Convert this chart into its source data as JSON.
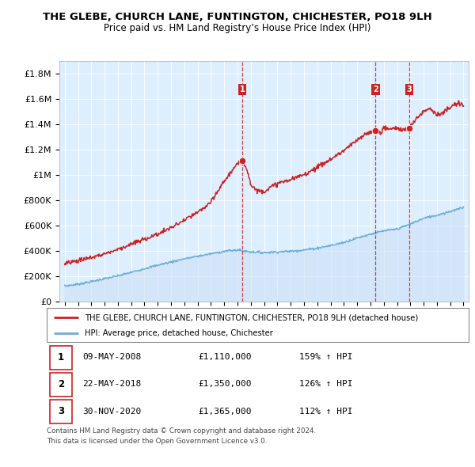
{
  "title": "THE GLEBE, CHURCH LANE, FUNTINGTON, CHICHESTER, PO18 9LH",
  "subtitle": "Price paid vs. HM Land Registry’s House Price Index (HPI)",
  "ylim": [
    0,
    1900000
  ],
  "yticks": [
    0,
    200000,
    400000,
    600000,
    800000,
    1000000,
    1200000,
    1400000,
    1600000,
    1800000
  ],
  "ytick_labels": [
    "£0",
    "£200K",
    "£400K",
    "£600K",
    "£800K",
    "£1M",
    "£1.2M",
    "£1.4M",
    "£1.6M",
    "£1.8M"
  ],
  "legend_line1": "THE GLEBE, CHURCH LANE, FUNTINGTON, CHICHESTER, PO18 9LH (detached house)",
  "legend_line2": "HPI: Average price, detached house, Chichester",
  "sale1_label": "1",
  "sale1_date": "09-MAY-2008",
  "sale1_price": "£1,110,000",
  "sale1_hpi": "159% ↑ HPI",
  "sale1_x": 2008.36,
  "sale1_y": 1110000,
  "sale2_label": "2",
  "sale2_date": "22-MAY-2018",
  "sale2_price": "£1,350,000",
  "sale2_hpi": "126% ↑ HPI",
  "sale2_x": 2018.39,
  "sale2_y": 1350000,
  "sale3_label": "3",
  "sale3_date": "30-NOV-2020",
  "sale3_price": "£1,365,000",
  "sale3_hpi": "112% ↑ HPI",
  "sale3_x": 2020.92,
  "sale3_y": 1365000,
  "hpi_color": "#6baed6",
  "price_color": "#cc2222",
  "vline_color": "#cc2222",
  "bg_color": "#ddeeff",
  "footer1": "Contains HM Land Registry data © Crown copyright and database right 2024.",
  "footer2": "This data is licensed under the Open Government Licence v3.0.",
  "xlim_left": 1994.6,
  "xlim_right": 2025.4
}
